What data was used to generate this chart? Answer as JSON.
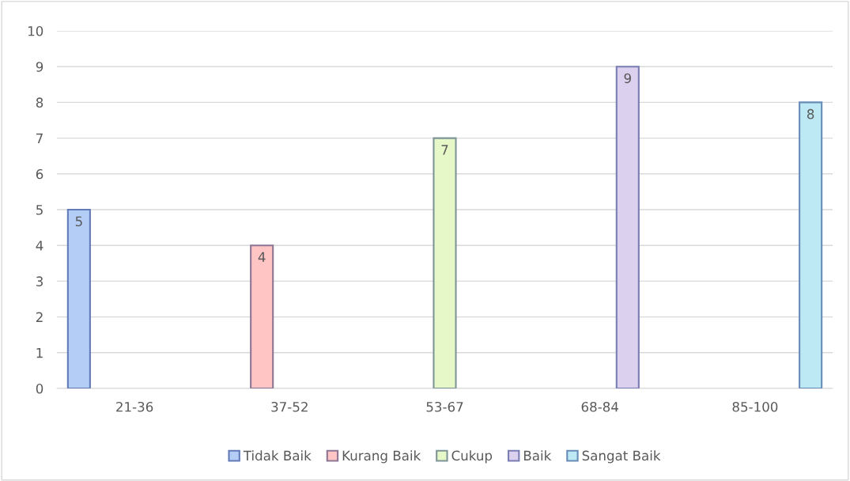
{
  "chart_data": {
    "type": "bar",
    "categories": [
      "21-36",
      "37-52",
      "53-67",
      "68-84",
      "85-100"
    ],
    "series": [
      {
        "name": "Tidak Baik",
        "color": "#b4cdf7",
        "values": [
          5,
          null,
          null,
          null,
          null
        ]
      },
      {
        "name": "Kurang Baik",
        "color": "#ffc4c4",
        "values": [
          null,
          4,
          null,
          null,
          null
        ]
      },
      {
        "name": "Cukup",
        "color": "#e6f7c8",
        "values": [
          null,
          null,
          7,
          null,
          null
        ]
      },
      {
        "name": "Baik",
        "color": "#dcd0ef",
        "values": [
          null,
          null,
          null,
          9,
          null
        ]
      },
      {
        "name": "Sangat Baik",
        "color": "#bde9f5",
        "values": [
          null,
          null,
          null,
          null,
          8
        ]
      }
    ],
    "ylim": [
      0,
      10
    ],
    "yticks": [
      0,
      1,
      2,
      3,
      4,
      5,
      6,
      7,
      8,
      9,
      10
    ],
    "grid": "y",
    "legend": "bottom",
    "data_labels": true
  }
}
